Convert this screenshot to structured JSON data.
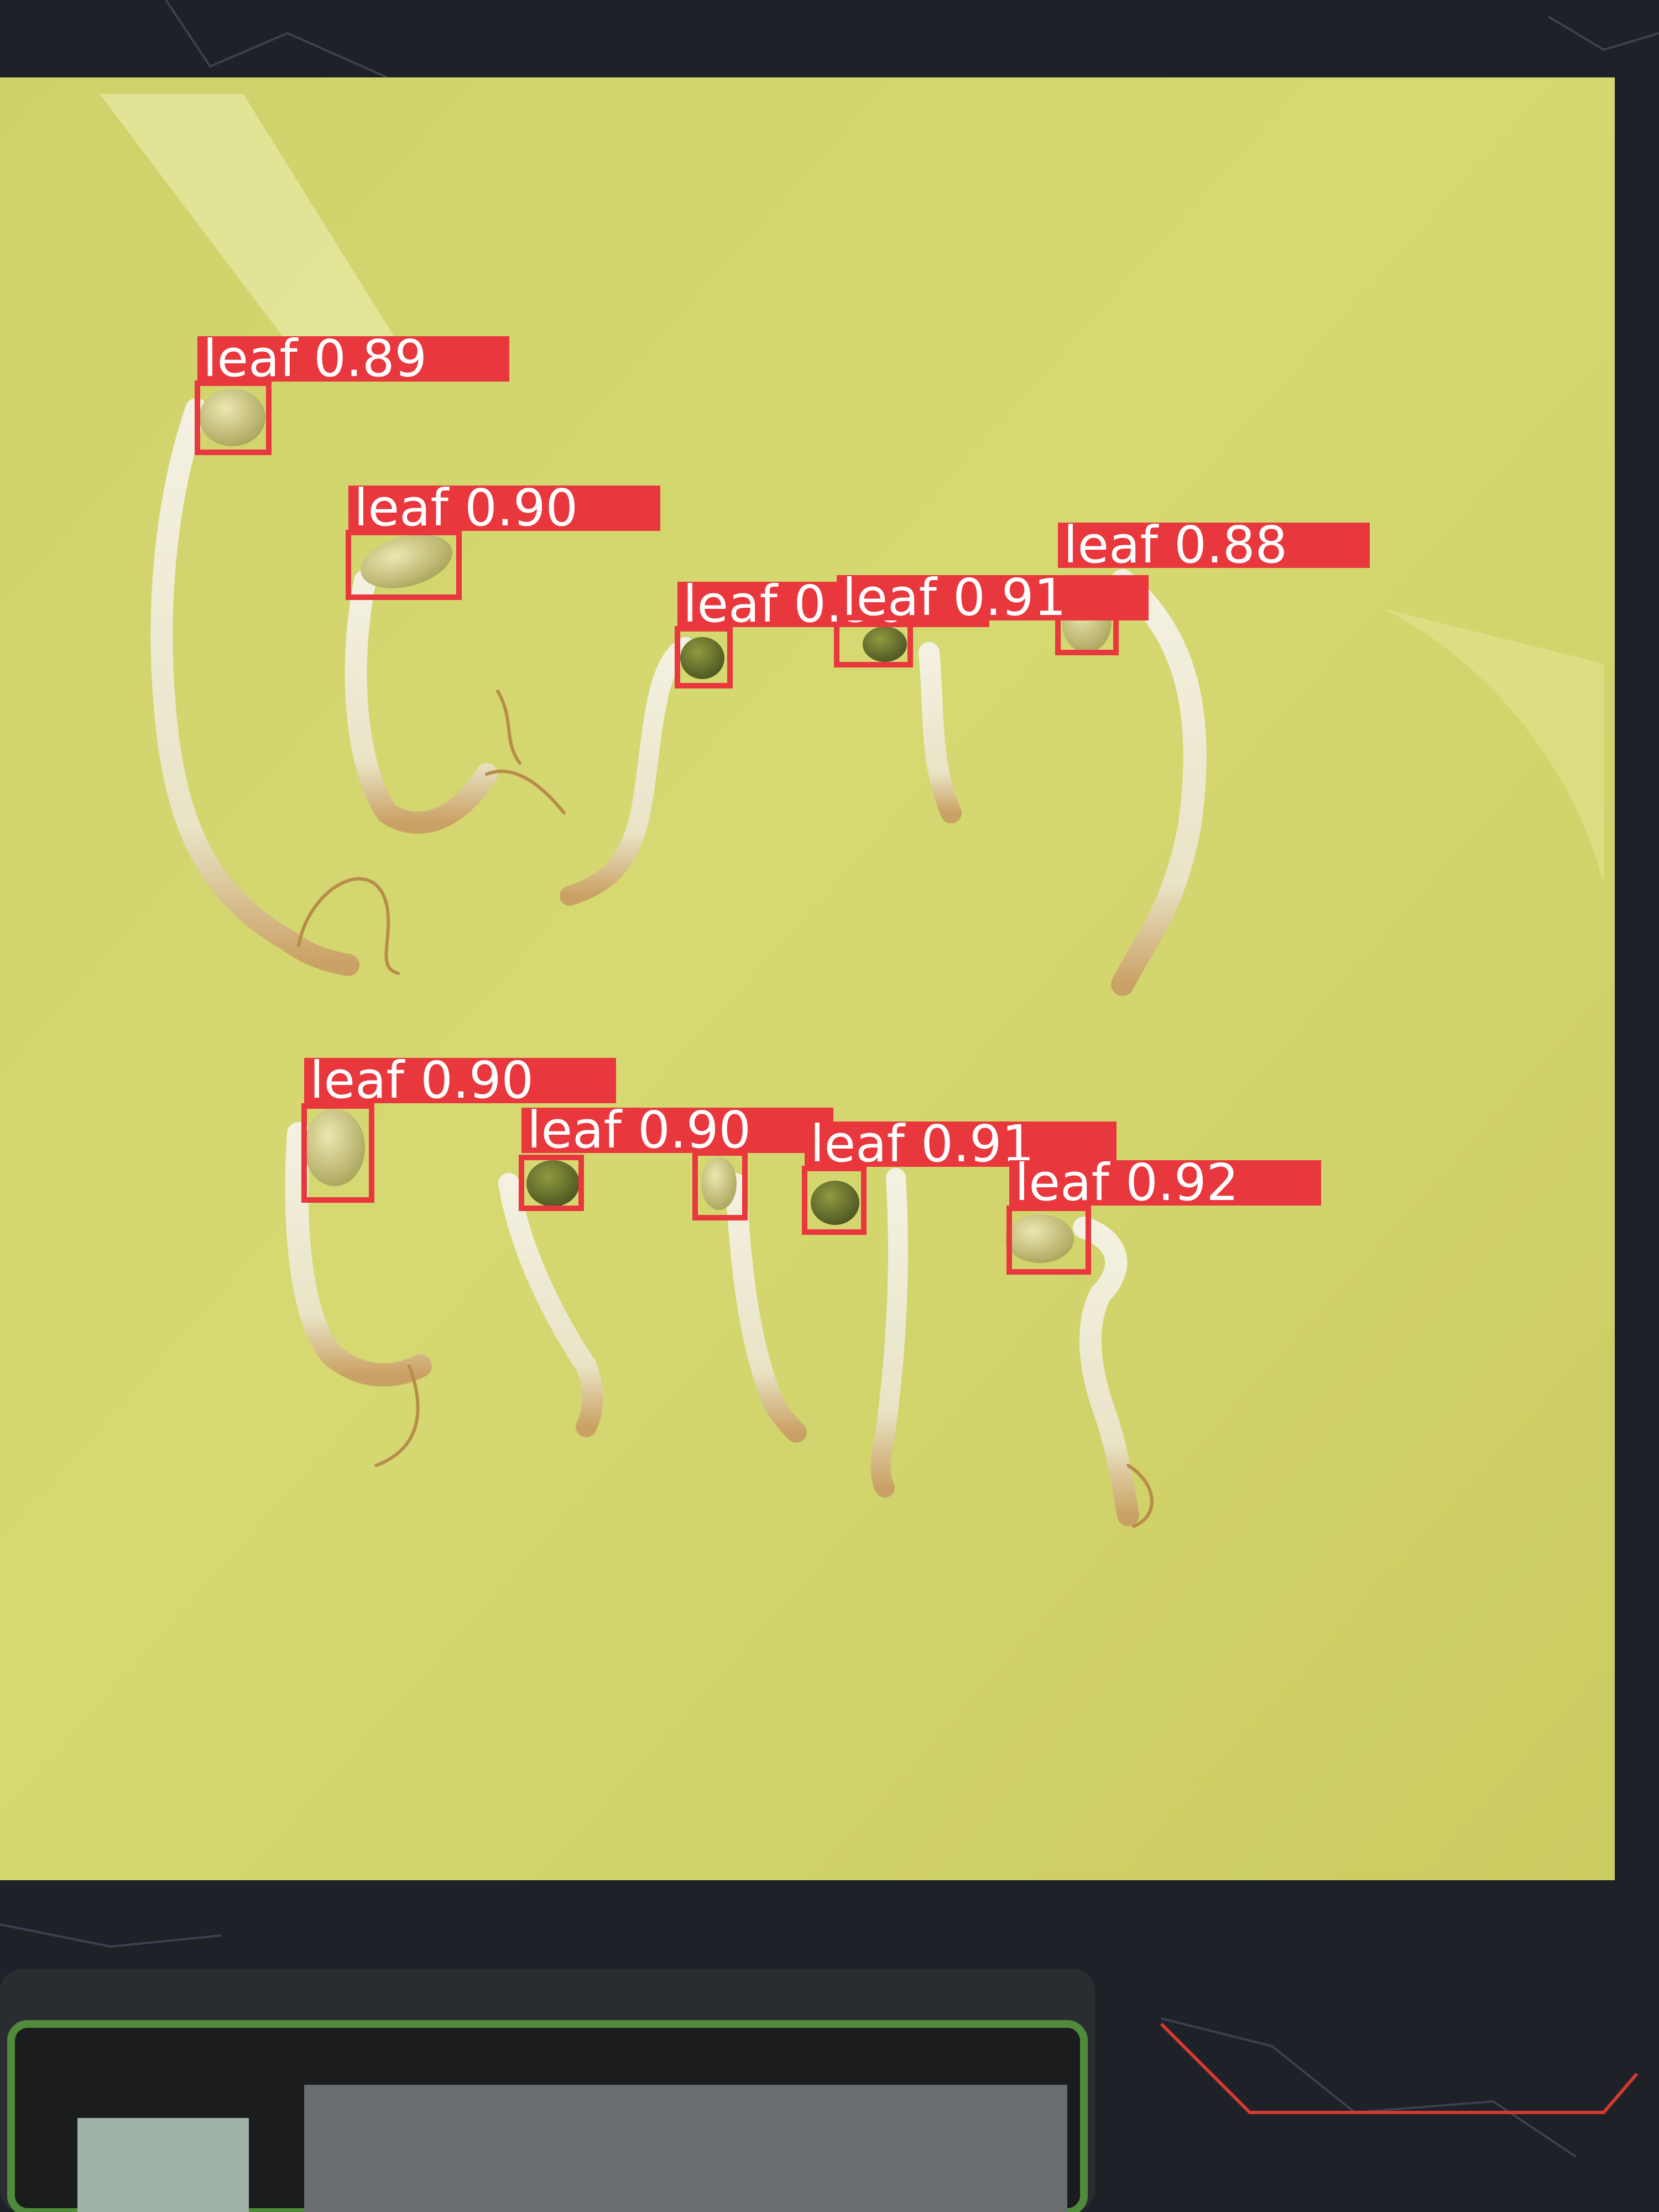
{
  "detections": [
    {
      "class": "leaf",
      "confidence": "0.89"
    },
    {
      "class": "leaf",
      "confidence": "0.90"
    },
    {
      "class": "leaf",
      "confidence": "0.90"
    },
    {
      "class": "leaf",
      "confidence": "0.91"
    },
    {
      "class": "leaf",
      "confidence": "0.88"
    },
    {
      "class": "leaf",
      "confidence": "0.90"
    },
    {
      "class": "leaf",
      "confidence": "0.90"
    },
    {
      "class": "leaf",
      "confidence": "0.91"
    },
    {
      "class": "leaf",
      "confidence": "0.92"
    },
    {
      "class": "leaf",
      "confidence": ""
    }
  ],
  "colors": {
    "box": "#e8373d",
    "label_text": "#ffffff",
    "board": "#d2d46a",
    "mat": "#1e2127"
  }
}
